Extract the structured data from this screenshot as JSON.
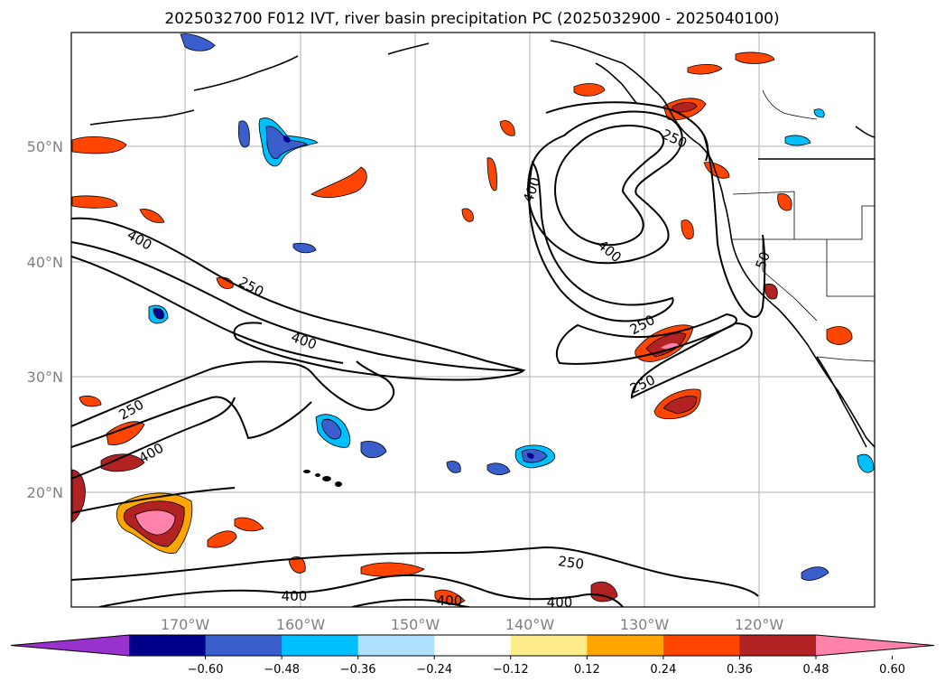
{
  "title": "2025032700 F012 IVT, river basin precipitation PC (2025032900 - 2025040100)",
  "map": {
    "longitude_labels": [
      "170°W",
      "160°W",
      "150°W",
      "140°W",
      "130°W",
      "120°W"
    ],
    "latitude_labels": [
      "50°N",
      "40°N",
      "30°N",
      "20°N"
    ],
    "grid": true,
    "ivt_contour_labels": [
      "400",
      "250",
      "400",
      "250",
      "400",
      "400",
      "250",
      "400",
      "250",
      "250",
      "250",
      "400",
      "400",
      "400"
    ]
  },
  "colorbar": {
    "ticks": [
      "−0.60",
      "−0.48",
      "−0.36",
      "−0.24",
      "−0.12",
      "0.12",
      "0.24",
      "0.36",
      "0.48",
      "0.60"
    ],
    "colors": [
      "#9932cc",
      "#00008b",
      "#3a5fcd",
      "#00bfff",
      "#b0e2ff",
      "#ffffff",
      "#ffec8b",
      "#ffa500",
      "#ff4500",
      "#b22222",
      "#ff82ab"
    ],
    "extend": "both"
  }
}
